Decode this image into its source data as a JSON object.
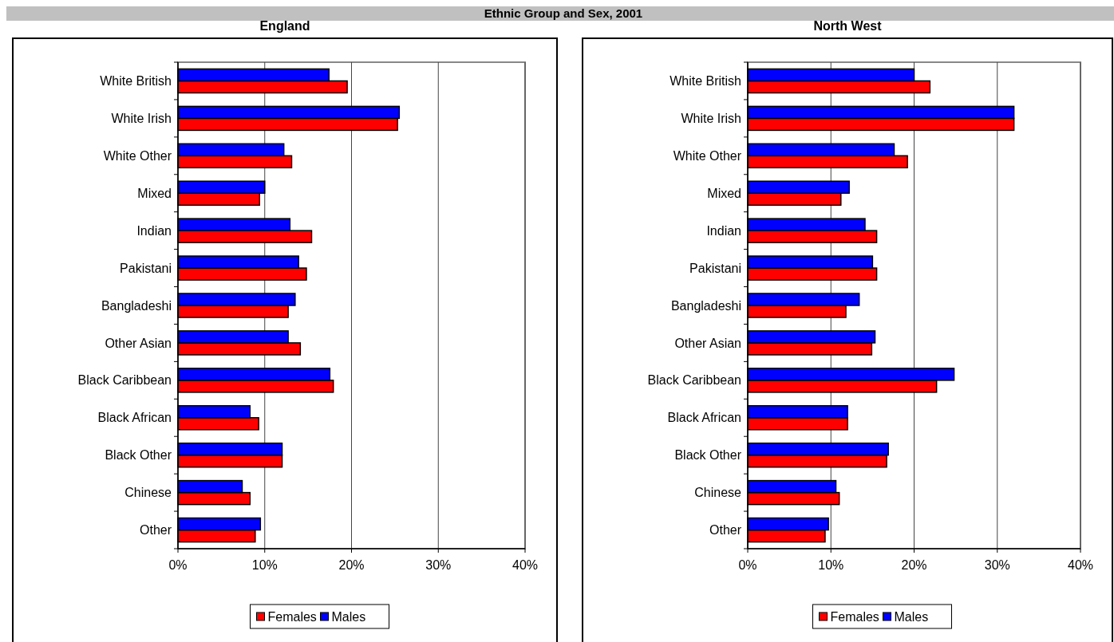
{
  "chart_data": [
    {
      "type": "bar",
      "orientation": "horizontal",
      "title": "England",
      "annotations": [
        "Ethnic Group and Sex, 2001"
      ],
      "categories": [
        "White British",
        "White Irish",
        "White Other",
        "Mixed",
        "Indian",
        "Pakistani",
        "Bangladeshi",
        "Other Asian",
        "Black Caribbean",
        "Black African",
        "Black Other",
        "Chinese",
        "Other"
      ],
      "series": [
        {
          "name": "Females",
          "color": "#ff0000",
          "values": [
            19.5,
            25.3,
            13.1,
            9.4,
            15.4,
            14.8,
            12.7,
            14.1,
            17.9,
            9.3,
            12.0,
            8.3,
            8.9
          ]
        },
        {
          "name": "Males",
          "color": "#0000ff",
          "values": [
            17.4,
            25.5,
            12.2,
            10.0,
            12.9,
            13.9,
            13.5,
            12.7,
            17.5,
            8.3,
            12.0,
            7.4,
            9.5
          ]
        }
      ],
      "xlim": [
        0,
        40
      ],
      "xticks": [
        {
          "value": 0,
          "label": "0%"
        },
        {
          "value": 10,
          "label": "10%"
        },
        {
          "value": 20,
          "label": "20%"
        },
        {
          "value": 30,
          "label": "30%"
        },
        {
          "value": 40,
          "label": "40%"
        }
      ],
      "grid": "x",
      "legend": "bottom"
    },
    {
      "type": "bar",
      "orientation": "horizontal",
      "title": "North West",
      "categories": [
        "White British",
        "White Irish",
        "White Other",
        "Mixed",
        "Indian",
        "Pakistani",
        "Bangladeshi",
        "Other Asian",
        "Black Caribbean",
        "Black African",
        "Black Other",
        "Chinese",
        "Other"
      ],
      "series": [
        {
          "name": "Females",
          "color": "#ff0000",
          "values": [
            21.9,
            32.0,
            19.2,
            11.2,
            15.5,
            15.5,
            11.8,
            14.9,
            22.7,
            12.0,
            16.7,
            11.0,
            9.3
          ]
        },
        {
          "name": "Males",
          "color": "#0000ff",
          "values": [
            20.0,
            32.0,
            17.6,
            12.2,
            14.1,
            15.0,
            13.4,
            15.3,
            24.8,
            12.0,
            16.9,
            10.6,
            9.7
          ]
        }
      ],
      "xlim": [
        0,
        40
      ],
      "xticks": [
        {
          "value": 0,
          "label": "0%"
        },
        {
          "value": 10,
          "label": "10%"
        },
        {
          "value": 20,
          "label": "20%"
        },
        {
          "value": 30,
          "label": "30%"
        },
        {
          "value": 40,
          "label": "40%"
        }
      ],
      "grid": "x",
      "legend": "bottom"
    }
  ]
}
